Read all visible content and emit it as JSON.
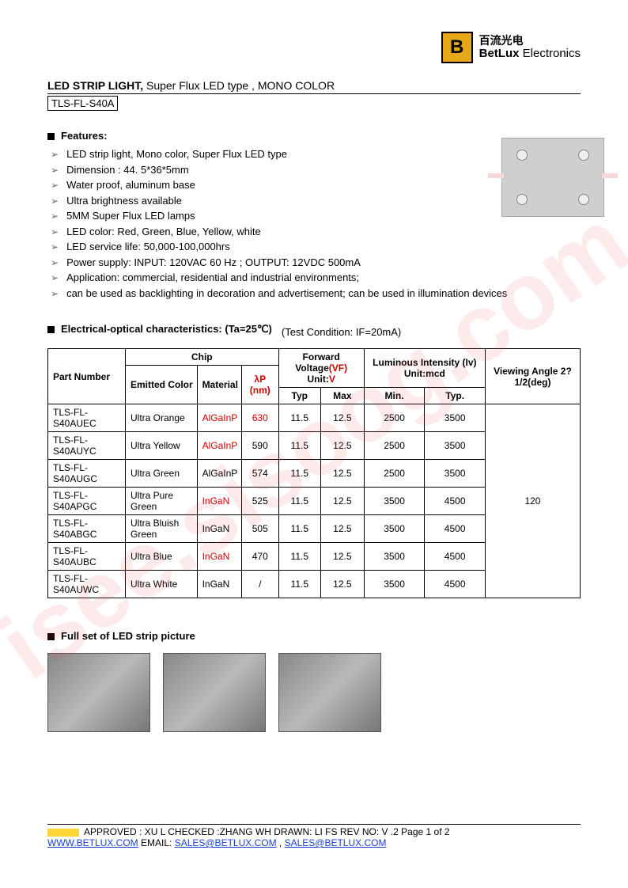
{
  "watermark": "isee.sisoog.com",
  "logo": {
    "cn": "百流光电",
    "en_bold": "BetLux",
    "en_rest": " Electronics"
  },
  "title": {
    "bold": "LED STRIP LIGHT,",
    "rest": " Super Flux LED type , MONO COLOR",
    "product": "TLS-FL-S40A"
  },
  "features_heading": "Features:",
  "features": [
    "LED strip light, Mono color, Super Flux LED type",
    "Dimension : 44. 5*36*5mm",
    "Water proof, aluminum base",
    "Ultra brightness available",
    "5MM Super Flux LED lamps",
    "LED color: Red, Green, Blue, Yellow, white",
    "LED service life: 50,000-100,000hrs",
    "Power supply: INPUT: 120VAC  60  Hz ; OUTPUT: 12VDC   500mA",
    "Application: commercial, residential and industrial environments;",
    "can be used as backlighting in decoration and advertisement; can be used in illumination devices"
  ],
  "elec_heading": "Electrical-optical characteristics: (Ta=25℃)",
  "test_condition": "(Test Condition: IF=20mA)",
  "table": {
    "hdr": {
      "part": "Part Number",
      "chip": "Chip",
      "emitted": "Emitted Color",
      "material": "Material",
      "lambda": "λP (nm)",
      "vf": "Forward Voltage",
      "vf_red": "(VF)",
      "unit": "Unit:",
      "unit_red": "V",
      "lum": "Luminous Intensity (Iv) Unit:mcd",
      "view": "Viewing Angle 2?1/2(deg)",
      "typ": "Typ",
      "max": "Max",
      "min": "Min.",
      "typ2": "Typ."
    },
    "rows": [
      {
        "p": "TLS-FL-S40AUEC",
        "c": "Ultra Orange",
        "m": "AlGaInP",
        "m_red": true,
        "w": "630",
        "w_red": true,
        "vt": "11.5",
        "vm": "12.5",
        "imin": "2500",
        "ityp": "3500"
      },
      {
        "p": "TLS-FL-S40AUYC",
        "c": "Ultra Yellow",
        "m": "AlGaInP",
        "m_red": true,
        "w": "590",
        "w_red": false,
        "vt": "11.5",
        "vm": "12.5",
        "imin": "2500",
        "ityp": "3500"
      },
      {
        "p": "TLS-FL-S40AUGC",
        "c": "Ultra Green",
        "m": "AlGaInP",
        "m_red": false,
        "w": "574",
        "w_red": false,
        "vt": "11.5",
        "vm": "12.5",
        "imin": "2500",
        "ityp": "3500"
      },
      {
        "p": "TLS-FL-S40APGC",
        "c": "Ultra Pure Green",
        "m": "InGaN",
        "m_red": true,
        "w": "525",
        "w_red": false,
        "vt": "11.5",
        "vm": "12.5",
        "imin": "3500",
        "ityp": "4500"
      },
      {
        "p": "TLS-FL-S40ABGC",
        "c": "Ultra Bluish Green",
        "m": "InGaN",
        "m_red": false,
        "w": "505",
        "w_red": false,
        "vt": "11.5",
        "vm": "12.5",
        "imin": "3500",
        "ityp": "4500"
      },
      {
        "p": "TLS-FL-S40AUBC",
        "c": "Ultra Blue",
        "m": "InGaN",
        "m_red": true,
        "w": "470",
        "w_red": false,
        "vt": "11.5",
        "vm": "12.5",
        "imin": "3500",
        "ityp": "4500"
      },
      {
        "p": "TLS-FL-S40AUWC",
        "c": "Ultra White",
        "m": "InGaN",
        "m_red": false,
        "w": "/",
        "w_red": false,
        "vt": "11.5",
        "vm": "12.5",
        "imin": "3500",
        "ityp": "4500"
      }
    ],
    "viewing": "120"
  },
  "pic_heading": "Full set of LED strip picture",
  "footer": {
    "approved": "APPROVED : XU L    CHECKED  :ZHANG WH    DRAWN:  LI  FS        REV  NO:  V .2      Page 1 of 2",
    "site": "WWW.BETLUX.COM",
    "email_lbl": "      EMAIL:  ",
    "email1": "SALES@BETLUX.COM",
    "sep": " , ",
    "email2": "SALES@BETLUX.COM"
  }
}
